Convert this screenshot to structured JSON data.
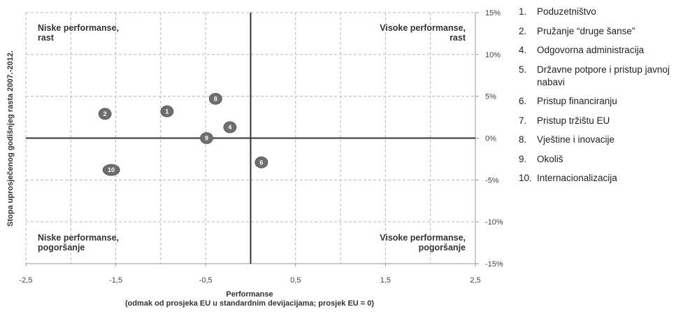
{
  "chart_data": {
    "type": "scatter",
    "xlabel": "Performanse",
    "xlabel_sub": "(odmak od prosjeka EU u standardnim devijacijama; prosjek EU = 0)",
    "ylabel": "Stopa uprosječenog godišnjeg rasta 2007.-2012.",
    "xlim": [
      -2.5,
      2.5
    ],
    "ylim": [
      -15,
      15
    ],
    "xticks": [
      "-2,5",
      "-1,5",
      "-0,5",
      "0,5",
      "1,5",
      "2,5"
    ],
    "yticks": [
      "15%",
      "10%",
      "5%",
      "0%",
      "-5%",
      "-10%",
      "-15%"
    ],
    "grid": true,
    "quadrants": {
      "top_left": [
        "Niske performanse,",
        "rast"
      ],
      "top_right": [
        "Visoke performanse,",
        "rast"
      ],
      "bottom_left": [
        "Niske performanse,",
        "pogoršanje"
      ],
      "bottom_right": [
        "Visoke performanse,",
        "pogoršanje"
      ]
    },
    "points": [
      {
        "label": "1",
        "x": -0.93,
        "y": 3.2
      },
      {
        "label": "2",
        "x": -1.62,
        "y": 2.9
      },
      {
        "label": "4",
        "x": -0.23,
        "y": 1.3
      },
      {
        "label": "6",
        "x": 0.12,
        "y": -2.9
      },
      {
        "label": "8",
        "x": -0.39,
        "y": 4.7
      },
      {
        "label": "9",
        "x": -0.49,
        "y": 0.0
      },
      {
        "label": "10",
        "x": -1.55,
        "y": -3.8
      }
    ],
    "point_color": "#6e6e6e"
  },
  "legend": [
    {
      "num": "1.",
      "text": "Poduzetništvo"
    },
    {
      "num": "2.",
      "text": "Pružanje “druge šanse”"
    },
    {
      "num": "4.",
      "text": "Odgovorna administracija"
    },
    {
      "num": "5.",
      "text": "Državne potpore i pristup javnoj nabavi"
    },
    {
      "num": "6.",
      "text": "Pristup financiranju"
    },
    {
      "num": "7.",
      "text": "Pristup tržištu EU"
    },
    {
      "num": "8.",
      "text": "Vještine i inovacije"
    },
    {
      "num": "9.",
      "text": "Okoliš"
    },
    {
      "num": "10.",
      "text": "Internacionalizacija"
    }
  ]
}
